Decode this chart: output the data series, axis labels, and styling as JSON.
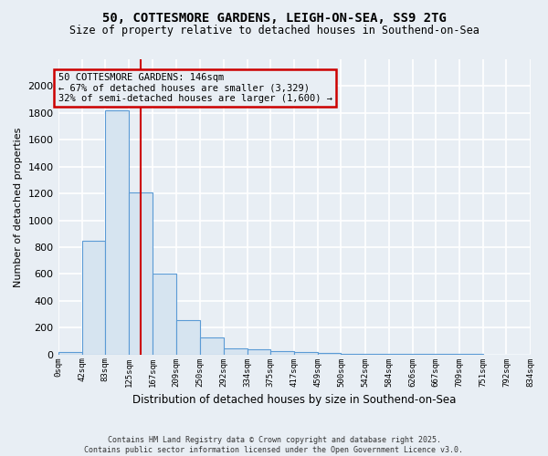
{
  "title_line1": "50, COTTESMORE GARDENS, LEIGH-ON-SEA, SS9 2TG",
  "title_line2": "Size of property relative to detached houses in Southend-on-Sea",
  "xlabel": "Distribution of detached houses by size in Southend-on-Sea",
  "ylabel": "Number of detached properties",
  "bin_edges": [
    0,
    42,
    83,
    125,
    167,
    209,
    250,
    292,
    334,
    375,
    417,
    459,
    500,
    542,
    584,
    626,
    667,
    709,
    751,
    792,
    834
  ],
  "bin_labels": [
    "0sqm",
    "42sqm",
    "83sqm",
    "125sqm",
    "167sqm",
    "209sqm",
    "250sqm",
    "292sqm",
    "334sqm",
    "375sqm",
    "417sqm",
    "459sqm",
    "500sqm",
    "542sqm",
    "584sqm",
    "626sqm",
    "667sqm",
    "709sqm",
    "751sqm",
    "792sqm",
    "834sqm"
  ],
  "bar_heights": [
    20,
    850,
    1820,
    1210,
    600,
    255,
    130,
    45,
    40,
    25,
    15,
    10,
    5,
    3,
    2,
    2,
    1,
    1,
    0,
    0
  ],
  "bar_color": "#d6e4f0",
  "bar_edge_color": "#5b9bd5",
  "property_size": 146,
  "vline_color": "#cc0000",
  "annotation_text": "50 COTTESMORE GARDENS: 146sqm\n← 67% of detached houses are smaller (3,329)\n32% of semi-detached houses are larger (1,600) →",
  "annotation_box_color": "#cc0000",
  "ylim": [
    0,
    2200
  ],
  "yticks": [
    0,
    200,
    400,
    600,
    800,
    1000,
    1200,
    1400,
    1600,
    1800,
    2000
  ],
  "footer_line1": "Contains HM Land Registry data © Crown copyright and database right 2025.",
  "footer_line2": "Contains public sector information licensed under the Open Government Licence v3.0.",
  "bg_color": "#e8eef4",
  "grid_color": "#ffffff"
}
